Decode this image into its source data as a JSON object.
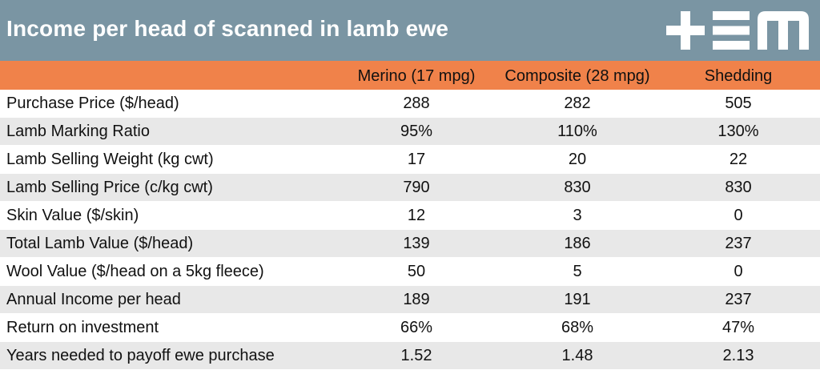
{
  "title": "Income per head of scanned in lamb ewe",
  "logo": {
    "icon": "tem-logo-icon",
    "color": "#ffffff"
  },
  "colors": {
    "title_bar": "#7a95a3",
    "header_bar": "#f0824a",
    "stripe": "#e8e8e8"
  },
  "columns": [
    "Merino (17 mpg)",
    "Composite (28 mpg)",
    "Shedding"
  ],
  "rows": [
    {
      "label": "Purchase Price ($/head)",
      "values": [
        "288",
        "282",
        "505"
      ]
    },
    {
      "label": "Lamb Marking Ratio",
      "values": [
        "95%",
        "110%",
        "130%"
      ]
    },
    {
      "label": "Lamb Selling Weight (kg cwt)",
      "values": [
        "17",
        "20",
        "22"
      ]
    },
    {
      "label": "Lamb Selling Price (c/kg cwt)",
      "values": [
        "790",
        "830",
        "830"
      ]
    },
    {
      "label": "Skin Value ($/skin)",
      "values": [
        "12",
        "3",
        "0"
      ]
    },
    {
      "label": "Total Lamb Value ($/head)",
      "values": [
        "139",
        "186",
        "237"
      ]
    },
    {
      "label": "Wool Value ($/head on a 5kg fleece)",
      "values": [
        "50",
        "5",
        "0"
      ]
    },
    {
      "label": "Annual Income per head",
      "values": [
        "189",
        "191",
        "237"
      ]
    },
    {
      "label": "Return on investment",
      "values": [
        "66%",
        "68%",
        "47%"
      ]
    },
    {
      "label": "Years needed to payoff ewe purchase",
      "values": [
        "1.52",
        "1.48",
        "2.13"
      ]
    }
  ]
}
